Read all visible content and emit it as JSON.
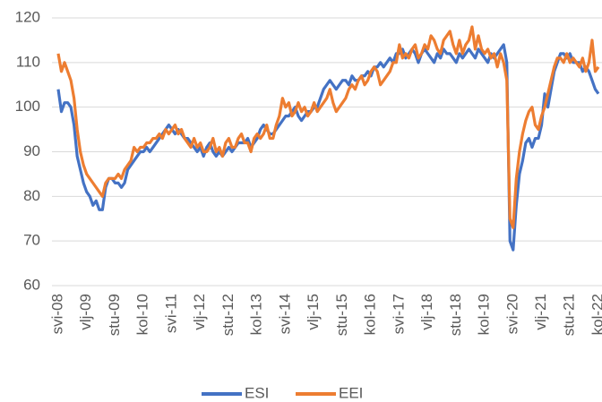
{
  "chart_data": {
    "type": "line",
    "categories": [
      "svi-08",
      null,
      null,
      null,
      null,
      null,
      null,
      null,
      null,
      "vlj-09",
      null,
      null,
      null,
      null,
      null,
      null,
      null,
      null,
      "stu-09",
      null,
      null,
      null,
      null,
      null,
      null,
      null,
      null,
      "kol-10",
      null,
      null,
      null,
      null,
      null,
      null,
      null,
      null,
      "svi-11",
      null,
      null,
      null,
      null,
      null,
      null,
      null,
      null,
      "vlj-12",
      null,
      null,
      null,
      null,
      null,
      null,
      null,
      null,
      "stu-12",
      null,
      null,
      null,
      null,
      null,
      null,
      null,
      null,
      "kol-13",
      null,
      null,
      null,
      null,
      null,
      null,
      null,
      null,
      "svi-14",
      null,
      null,
      null,
      null,
      null,
      null,
      null,
      null,
      "vlj-15",
      null,
      null,
      null,
      null,
      null,
      null,
      null,
      null,
      "stu-15",
      null,
      null,
      null,
      null,
      null,
      null,
      null,
      null,
      "kol-16",
      null,
      null,
      null,
      null,
      null,
      null,
      null,
      null,
      "svi-17",
      null,
      null,
      null,
      null,
      null,
      null,
      null,
      null,
      "vlj-18",
      null,
      null,
      null,
      null,
      null,
      null,
      null,
      null,
      "stu-18",
      null,
      null,
      null,
      null,
      null,
      null,
      null,
      null,
      "kol-19",
      null,
      null,
      null,
      null,
      null,
      null,
      null,
      null,
      "svi-20",
      null,
      null,
      null,
      null,
      null,
      null,
      null,
      null,
      "vlj-21",
      null,
      null,
      null,
      null,
      null,
      null,
      null,
      null,
      "stu-21",
      null,
      null,
      null,
      null,
      null,
      null,
      null,
      null,
      "kol-22"
    ],
    "series": [
      {
        "name": "ESI",
        "color": "#4472c4",
        "values": [
          104,
          99,
          101,
          101,
          100,
          96,
          89,
          86,
          83,
          81,
          80,
          78,
          79,
          77,
          77,
          82,
          84,
          84,
          83,
          83,
          82,
          83,
          86,
          87,
          88,
          89,
          90,
          90,
          91,
          90,
          91,
          92,
          93,
          94,
          95,
          96,
          95,
          94,
          95,
          94,
          93,
          93,
          92,
          91,
          90,
          91,
          89,
          91,
          92,
          90,
          89,
          90,
          89,
          90,
          91,
          90,
          91,
          92,
          92,
          92,
          93,
          91,
          92,
          93,
          95,
          96,
          95,
          94,
          94,
          95,
          96,
          97,
          98,
          98,
          99,
          100,
          98,
          97,
          98,
          99,
          99,
          100,
          100,
          102,
          104,
          105,
          106,
          105,
          104,
          105,
          106,
          106,
          105,
          107,
          106,
          106,
          107,
          107,
          108,
          107,
          109,
          109,
          110,
          109,
          110,
          111,
          110,
          112,
          112,
          113,
          111,
          112,
          113,
          112,
          110,
          112,
          113,
          112,
          111,
          110,
          112,
          111,
          113,
          112,
          112,
          111,
          110,
          112,
          111,
          112,
          113,
          112,
          111,
          113,
          112,
          111,
          110,
          112,
          111,
          112,
          113,
          114,
          110,
          70,
          68,
          78,
          85,
          88,
          92,
          93,
          91,
          93,
          93,
          96,
          103,
          100,
          104,
          108,
          110,
          112,
          112,
          111,
          112,
          110,
          110,
          110,
          108,
          109,
          108,
          106,
          104,
          103
        ]
      },
      {
        "name": "EEI",
        "color": "#ed7d31",
        "values": [
          112,
          108,
          110,
          108,
          106,
          102,
          95,
          90,
          87,
          85,
          84,
          83,
          82,
          81,
          80,
          83,
          84,
          84,
          84,
          85,
          84,
          86,
          87,
          88,
          91,
          90,
          91,
          91,
          92,
          92,
          93,
          93,
          94,
          93,
          95,
          94,
          95,
          96,
          94,
          95,
          93,
          92,
          91,
          93,
          91,
          92,
          90,
          90,
          91,
          93,
          90,
          91,
          89,
          92,
          93,
          91,
          91,
          93,
          94,
          92,
          92,
          90,
          93,
          94,
          93,
          94,
          96,
          93,
          93,
          96,
          98,
          102,
          100,
          101,
          98,
          99,
          101,
          99,
          100,
          98,
          99,
          101,
          99,
          100,
          101,
          102,
          104,
          101,
          99,
          100,
          101,
          102,
          104,
          105,
          104,
          106,
          107,
          105,
          106,
          108,
          109,
          108,
          105,
          106,
          107,
          108,
          110,
          110,
          114,
          111,
          112,
          111,
          113,
          114,
          111,
          112,
          114,
          113,
          116,
          115,
          113,
          112,
          115,
          116,
          117,
          114,
          112,
          115,
          112,
          114,
          115,
          118,
          113,
          116,
          113,
          112,
          113,
          111,
          112,
          109,
          112,
          110,
          106,
          75,
          73,
          84,
          90,
          94,
          97,
          99,
          100,
          96,
          95,
          98,
          100,
          103,
          106,
          109,
          111,
          111,
          110,
          112,
          110,
          111,
          110,
          109,
          111,
          108,
          110,
          115,
          108,
          109
        ]
      }
    ],
    "ylim": [
      60,
      120
    ],
    "yticks": [
      60,
      70,
      80,
      90,
      100,
      110,
      120
    ],
    "grid": true
  }
}
